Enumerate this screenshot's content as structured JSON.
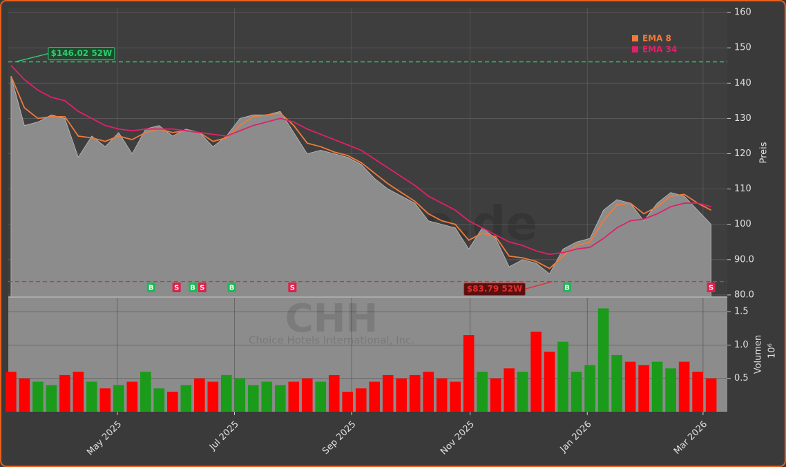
{
  "chart_data": [
    {
      "type": "area",
      "ylabel": "Preis",
      "watermark": "forexsignale.de",
      "ylim": [
        79.4,
        161.2
      ],
      "yticks": [
        {
          "value": 80,
          "label": "80.0"
        },
        {
          "value": 90,
          "label": "90.0"
        },
        100,
        110,
        120,
        130,
        140,
        150,
        160
      ],
      "xlim": [
        -0.2,
        53.2
      ],
      "area_color": "#8c8c8c",
      "values": [
        142,
        128,
        129,
        131,
        130,
        119,
        125,
        122,
        126,
        120,
        127,
        128,
        125,
        127,
        126,
        122,
        125,
        130,
        131,
        131,
        132,
        126,
        120,
        121,
        120,
        119,
        117,
        113,
        110,
        108,
        106,
        101,
        100,
        99,
        93,
        99,
        96,
        88,
        90,
        89,
        86,
        93,
        95,
        96,
        104,
        107,
        106,
        101,
        106,
        109,
        108,
        104,
        100
      ],
      "series": [
        {
          "name": "EMA 8",
          "color": "#f07a3a",
          "values": [
            142,
            133,
            130,
            130.5,
            130.5,
            125,
            124.5,
            123.5,
            125,
            124,
            126,
            127,
            126,
            126.5,
            126,
            123.5,
            124.5,
            128,
            130.5,
            131,
            131.5,
            128,
            123,
            122,
            120.5,
            119.5,
            117.5,
            114.5,
            111.5,
            109,
            106.5,
            103,
            101,
            100,
            95.5,
            97.5,
            96.5,
            91,
            90.5,
            89.5,
            87.5,
            91,
            94,
            95,
            101,
            105.5,
            106,
            103,
            105,
            108,
            108.5,
            106,
            104
          ]
        },
        {
          "name": "EMA 34",
          "color": "#e0206a",
          "values": [
            145,
            141,
            138,
            136,
            135,
            132,
            130,
            128,
            127,
            126.5,
            127,
            127,
            127,
            126.5,
            126,
            125.5,
            125,
            126.5,
            128,
            129,
            130,
            129,
            127,
            125.5,
            124,
            122.5,
            121,
            118.5,
            116,
            113.5,
            111,
            108,
            106,
            104,
            101,
            99,
            97,
            95,
            94,
            92.5,
            91.5,
            92,
            93,
            93.5,
            96,
            99,
            101,
            101.5,
            103,
            105,
            106,
            106,
            105
          ]
        }
      ],
      "annotations": [
        {
          "label": "$146.02 52W",
          "value": 146.02,
          "x": 0,
          "color": "#2ecc71"
        },
        {
          "label": "$83.79 52W",
          "value": 83.79,
          "x": 40.2,
          "color": "#e03030"
        }
      ],
      "signals": [
        {
          "x": 10.4,
          "label": "B",
          "color": "#1db954"
        },
        {
          "x": 12.3,
          "label": "S",
          "color": "#e0204a"
        },
        {
          "x": 13.5,
          "label": "B",
          "color": "#1db954"
        },
        {
          "x": 14.2,
          "label": "S",
          "color": "#e0204a"
        },
        {
          "x": 16.4,
          "label": "B",
          "color": "#1db954"
        },
        {
          "x": 20.9,
          "label": "S",
          "color": "#e0204a"
        },
        {
          "x": 41.3,
          "label": "B",
          "color": "#1db954"
        },
        {
          "x": 52,
          "label": "S",
          "color": "#e0204a"
        }
      ],
      "grid": true
    },
    {
      "type": "bar",
      "ylabel": "Volumen",
      "offset_label": "10⁶",
      "watermark": "CHH",
      "subtitle": "Choice Hotels International, Inc.",
      "ylim": [
        0,
        1.72
      ],
      "yticks": [
        0.5,
        {
          "value": 1,
          "label": "1.0"
        },
        1.5
      ],
      "xlim": [
        -0.2,
        53.2
      ],
      "xticks": [
        {
          "value": 7.9,
          "label": "May 2025"
        },
        {
          "value": 16.6,
          "label": "Jul 2025"
        },
        {
          "value": 25.3,
          "label": "Sep 2025"
        },
        {
          "value": 34.1,
          "label": "Nov 2025"
        },
        {
          "value": 42.8,
          "label": "Jan 2026"
        },
        {
          "value": 51.4,
          "label": "Mar 2026"
        }
      ],
      "values": [
        0.6,
        0.5,
        0.45,
        0.4,
        0.55,
        0.6,
        0.45,
        0.35,
        0.4,
        0.45,
        0.6,
        0.35,
        0.3,
        0.4,
        0.5,
        0.45,
        0.55,
        0.5,
        0.4,
        0.45,
        0.4,
        0.45,
        0.5,
        0.45,
        0.55,
        0.3,
        0.35,
        0.45,
        0.55,
        0.5,
        0.55,
        0.6,
        0.5,
        0.45,
        1.15,
        0.6,
        0.5,
        0.65,
        0.6,
        1.2,
        0.9,
        1.05,
        0.6,
        0.7,
        1.55,
        0.85,
        0.75,
        0.7,
        0.75,
        0.65,
        0.75,
        0.6,
        0.5
      ],
      "colors": [
        "#ff0000",
        "#ff0000",
        "#1a9c1a",
        "#1a9c1a",
        "#ff0000",
        "#ff0000",
        "#1a9c1a",
        "#ff0000",
        "#1a9c1a",
        "#ff0000",
        "#1a9c1a",
        "#1a9c1a",
        "#ff0000",
        "#1a9c1a",
        "#ff0000",
        "#ff0000",
        "#1a9c1a",
        "#1a9c1a",
        "#1a9c1a",
        "#1a9c1a",
        "#1a9c1a",
        "#ff0000",
        "#ff0000",
        "#1a9c1a",
        "#ff0000",
        "#ff0000",
        "#ff0000",
        "#ff0000",
        "#ff0000",
        "#ff0000",
        "#ff0000",
        "#ff0000",
        "#ff0000",
        "#ff0000",
        "#ff0000",
        "#1a9c1a",
        "#ff0000",
        "#ff0000",
        "#1a9c1a",
        "#ff0000",
        "#ff0000",
        "#1a9c1a",
        "#1a9c1a",
        "#1a9c1a",
        "#1a9c1a",
        "#1a9c1a",
        "#ff0000",
        "#ff0000",
        "#1a9c1a",
        "#1a9c1a",
        "#ff0000",
        "#ff0000",
        "#ff0000"
      ],
      "grid": true
    }
  ]
}
